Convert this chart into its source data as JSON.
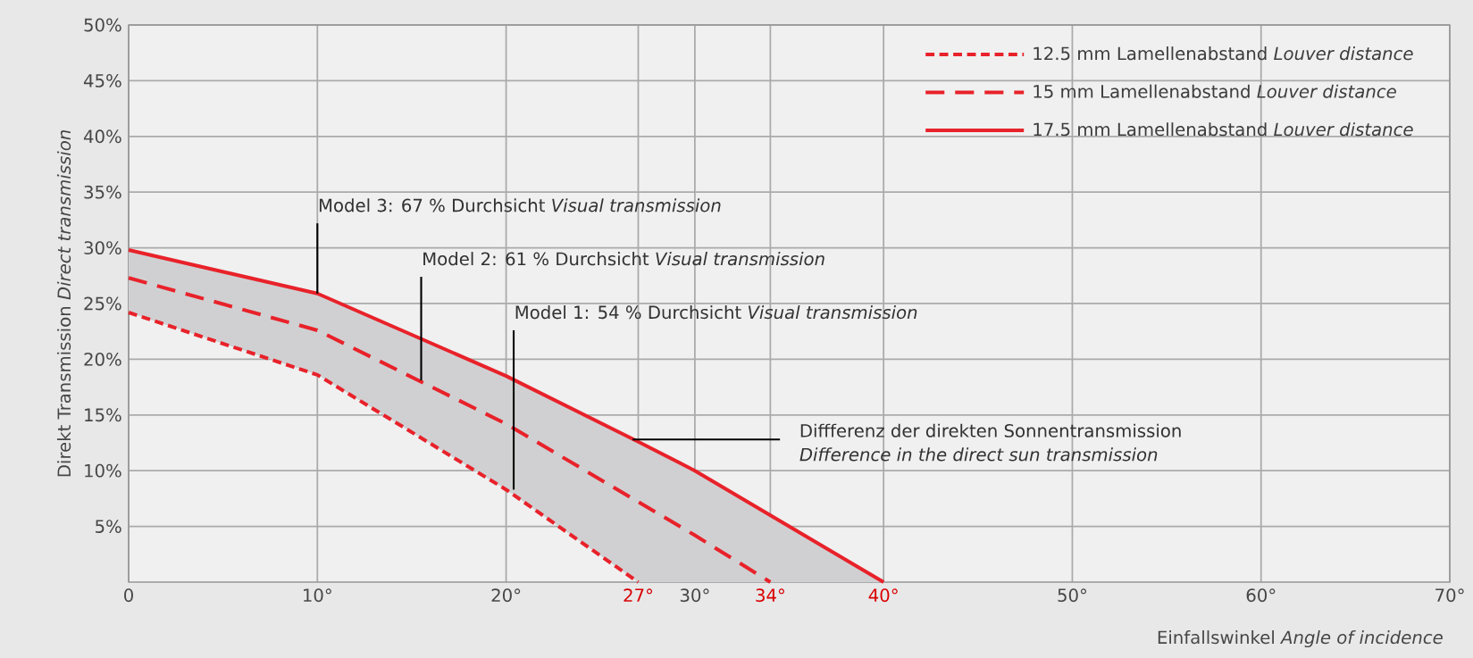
{
  "chart_data": {
    "type": "line",
    "xlabel": "Einfallswinkel  *Angle of incidence*",
    "ylabel": "Direkt Transmission  *Direct transmission*",
    "xlim": [
      0,
      70
    ],
    "ylim": [
      0,
      50
    ],
    "xticks": [
      0,
      {
        "value": 10,
        "label": "10°"
      },
      {
        "value": 20,
        "label": "20°"
      },
      {
        "value": 27,
        "label": "27°"
      },
      {
        "value": 30,
        "label": "30°"
      },
      {
        "value": 34,
        "label": "34°"
      },
      {
        "value": 40,
        "label": "40°"
      },
      {
        "value": 50,
        "label": "50°"
      },
      {
        "value": 60,
        "label": "60°"
      },
      {
        "value": 70,
        "label": "70°"
      }
    ],
    "yticks": [
      {
        "value": 5,
        "label": "5%"
      },
      {
        "value": 10,
        "label": "10%"
      },
      {
        "value": 15,
        "label": "15%"
      },
      {
        "value": 20,
        "label": "20%"
      },
      {
        "value": 25,
        "label": "25%"
      },
      {
        "value": 30,
        "label": "30%"
      },
      {
        "value": 35,
        "label": "35%"
      },
      {
        "value": 40,
        "label": "40%"
      },
      {
        "value": 45,
        "label": "45%"
      },
      {
        "value": 50,
        "label": "50%"
      }
    ],
    "grid": true,
    "legend": "top right",
    "series": [
      {
        "name": "12.5 mm Lamellenabstand  *Louver distance*",
        "color": "#e8222a",
        "line_style": "dotted",
        "x": [
          0,
          10,
          20,
          27
        ],
        "values": [
          24.2,
          18.6,
          8.3,
          0
        ]
      },
      {
        "name": "15 mm Lamellenabstand  *Louver distance*",
        "color": "#e8222a",
        "line_style": "dashed",
        "x": [
          0,
          10,
          20,
          30,
          34
        ],
        "values": [
          27.3,
          22.6,
          14.2,
          4.2,
          0
        ]
      },
      {
        "name": "17.5 mm Lamellenabstand  *Louver distance*",
        "color": "#e8222a",
        "line_style": "solid",
        "x": [
          0,
          10,
          20,
          27,
          30,
          40
        ],
        "values": [
          29.8,
          25.9,
          18.5,
          12.6,
          10.0,
          0
        ],
        "lower": [
          24.2,
          18.6,
          8.3,
          0,
          0,
          0
        ],
        "upper": [
          29.8,
          25.9,
          18.5,
          12.6,
          10.0,
          0
        ]
      }
    ],
    "annotations": [
      {
        "text": "Model 3: 67 % Durchsicht *Visual transmission*",
        "x": 10,
        "y": 25.9
      },
      {
        "text": "Model 2: 61 % Durchsicht *Visual transmission*",
        "x": 15.5,
        "y": 18.1
      },
      {
        "text": "Model 1: 54 % Durchsicht *Visual transmission*",
        "x": 20.4,
        "y": 8.3
      },
      {
        "text": "Diffferenz der direkten Sonnentransmission",
        "x": 26.7,
        "y": 12.8
      },
      "*Difference in the direct sun transmission*"
    ]
  }
}
